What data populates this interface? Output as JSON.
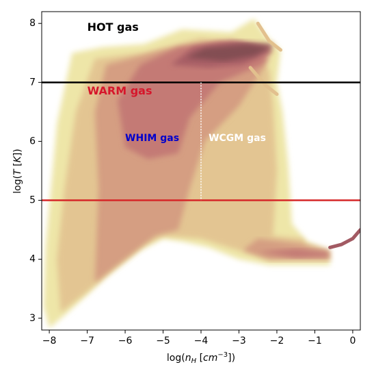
{
  "chart_data": {
    "type": "heatmap",
    "xlabel": "log(n_H [cm^-3])",
    "ylabel": "log(T [K])",
    "xlim": [
      -8.2,
      0.2
    ],
    "ylim": [
      2.8,
      8.2
    ],
    "xticks": [
      -8,
      -7,
      -6,
      -5,
      -4,
      -3,
      -2,
      -1,
      0
    ],
    "yticks": [
      3,
      4,
      5,
      6,
      7,
      8
    ],
    "xtick_labels": [
      "−8",
      "−7",
      "−6",
      "−5",
      "−4",
      "−3",
      "−2",
      "−1",
      "0"
    ],
    "ytick_labels": [
      "3",
      "4",
      "5",
      "6",
      "7",
      "8"
    ],
    "colormap": [
      "#eee6a8",
      "#e2c08e",
      "#d2977f",
      "#c17473",
      "#a25a63",
      "#7c4b4f"
    ],
    "hlines": [
      {
        "y": 7.0,
        "color": "#000000"
      },
      {
        "y": 5.0,
        "color": "#d62728"
      }
    ],
    "vlines": [
      {
        "x": -4.0,
        "ymin": 5.0,
        "ymax": 7.0,
        "color": "#ffffff",
        "style": "dotted"
      }
    ],
    "annotations": [
      {
        "text": "HOT gas",
        "x": -7.0,
        "y": 7.93,
        "color": "#000000",
        "size": 16
      },
      {
        "text": "WARM gas",
        "x": -7.0,
        "y": 6.85,
        "color": "#d6162b",
        "size": 16
      },
      {
        "text": "WHIM gas",
        "x": -6.0,
        "y": 6.05,
        "color": "#0000cc",
        "size": 14
      },
      {
        "text": "WCGM gas",
        "x": -3.8,
        "y": 6.05,
        "color": "#ffffff",
        "size": 14
      }
    ],
    "density_regions": [
      {
        "level": 0,
        "points": [
          [
            -8.0,
            2.83
          ],
          [
            -7.6,
            3.05
          ],
          [
            -7.0,
            3.4
          ],
          [
            -6.5,
            3.7
          ],
          [
            -6.0,
            3.95
          ],
          [
            -5.6,
            4.15
          ],
          [
            -5.0,
            4.35
          ],
          [
            -4.5,
            4.3
          ],
          [
            -3.8,
            4.2
          ],
          [
            -3.0,
            4.0
          ],
          [
            -2.2,
            3.9
          ],
          [
            -0.6,
            3.9
          ],
          [
            -0.6,
            4.15
          ],
          [
            -1.2,
            4.3
          ],
          [
            -1.6,
            4.6
          ],
          [
            -1.7,
            5.6
          ],
          [
            -1.85,
            6.5
          ],
          [
            -2.0,
            7.0
          ],
          [
            -1.9,
            7.55
          ],
          [
            -2.3,
            7.8
          ],
          [
            -2.6,
            8.08
          ],
          [
            -3.2,
            7.85
          ],
          [
            -4.5,
            7.9
          ],
          [
            -5.5,
            7.65
          ],
          [
            -6.6,
            7.6
          ],
          [
            -7.4,
            7.5
          ],
          [
            -7.8,
            6.3
          ],
          [
            -8.1,
            4.2
          ],
          [
            -8.15,
            3.2
          ]
        ]
      },
      {
        "level": 1,
        "points": [
          [
            -7.7,
            3.1
          ],
          [
            -7.0,
            3.45
          ],
          [
            -6.3,
            3.85
          ],
          [
            -5.5,
            4.25
          ],
          [
            -5.0,
            4.4
          ],
          [
            -4.0,
            4.35
          ],
          [
            -3.0,
            4.15
          ],
          [
            -2.3,
            4.05
          ],
          [
            -1.2,
            4.1
          ],
          [
            -1.3,
            4.35
          ],
          [
            -2.1,
            4.4
          ],
          [
            -2.0,
            5.5
          ],
          [
            -2.1,
            6.6
          ],
          [
            -2.2,
            7.2
          ],
          [
            -2.6,
            7.6
          ],
          [
            -4.0,
            7.75
          ],
          [
            -5.5,
            7.5
          ],
          [
            -6.8,
            7.4
          ],
          [
            -7.3,
            6.5
          ],
          [
            -7.6,
            5.2
          ],
          [
            -7.8,
            4.0
          ]
        ]
      },
      {
        "level": 2,
        "points": [
          [
            -6.8,
            3.6
          ],
          [
            -6.0,
            4.0
          ],
          [
            -5.2,
            4.4
          ],
          [
            -4.6,
            4.5
          ],
          [
            -4.3,
            5.2
          ],
          [
            -3.9,
            6.0
          ],
          [
            -3.0,
            6.6
          ],
          [
            -2.5,
            7.1
          ],
          [
            -2.2,
            7.4
          ],
          [
            -3.5,
            7.7
          ],
          [
            -5.0,
            7.55
          ],
          [
            -6.5,
            7.3
          ],
          [
            -6.8,
            6.5
          ],
          [
            -6.7,
            5.2
          ]
        ]
      },
      {
        "level": 2,
        "points": [
          [
            -2.9,
            4.15
          ],
          [
            -2.2,
            3.98
          ],
          [
            -0.6,
            3.98
          ],
          [
            -0.6,
            4.15
          ],
          [
            -1.2,
            4.25
          ],
          [
            -2.5,
            4.35
          ]
        ]
      },
      {
        "level": 3,
        "points": [
          [
            -6.0,
            5.9
          ],
          [
            -5.4,
            5.7
          ],
          [
            -4.6,
            5.8
          ],
          [
            -4.3,
            6.4
          ],
          [
            -3.5,
            7.0
          ],
          [
            -2.4,
            7.3
          ],
          [
            -2.1,
            7.55
          ],
          [
            -3.2,
            7.72
          ],
          [
            -4.6,
            7.6
          ],
          [
            -5.6,
            7.3
          ],
          [
            -6.2,
            6.7
          ]
        ]
      },
      {
        "level": 3,
        "points": [
          [
            -2.5,
            4.12
          ],
          [
            -1.5,
            4.02
          ],
          [
            -0.65,
            4.04
          ],
          [
            -0.65,
            4.12
          ],
          [
            -1.5,
            4.18
          ]
        ]
      },
      {
        "level": 4,
        "points": [
          [
            -4.8,
            7.3
          ],
          [
            -3.8,
            7.25
          ],
          [
            -2.9,
            7.3
          ],
          [
            -2.2,
            7.52
          ],
          [
            -2.1,
            7.65
          ],
          [
            -3.0,
            7.7
          ],
          [
            -4.2,
            7.6
          ]
        ]
      },
      {
        "level": 5,
        "points": [
          [
            -4.4,
            7.42
          ],
          [
            -3.4,
            7.36
          ],
          [
            -2.6,
            7.45
          ],
          [
            -2.15,
            7.6
          ],
          [
            -2.8,
            7.65
          ],
          [
            -3.9,
            7.58
          ]
        ]
      }
    ],
    "streaks": [
      {
        "level": 1,
        "points": [
          [
            -2.5,
            8.0
          ],
          [
            -2.2,
            7.7
          ],
          [
            -1.9,
            7.55
          ]
        ]
      },
      {
        "level": 1,
        "points": [
          [
            -2.7,
            7.25
          ],
          [
            -2.3,
            6.95
          ],
          [
            -2.0,
            6.8
          ]
        ]
      },
      {
        "level": 4,
        "points": [
          [
            -0.6,
            4.2
          ],
          [
            -0.3,
            4.25
          ],
          [
            0.0,
            4.35
          ],
          [
            0.2,
            4.5
          ]
        ]
      }
    ]
  }
}
